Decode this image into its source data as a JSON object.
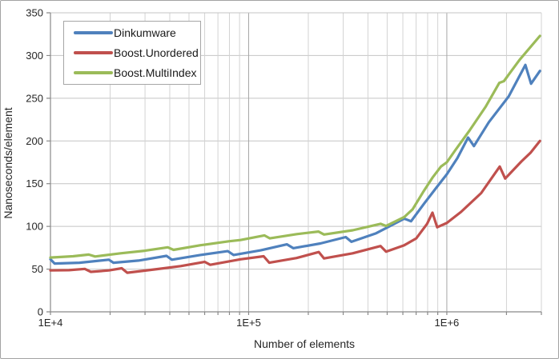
{
  "chart_data": {
    "type": "line",
    "title": "",
    "xlabel": "Number of elements",
    "ylabel": "Nanoseconds/element",
    "x_scale": "log",
    "xlim": [
      10000,
      3000000
    ],
    "ylim": [
      0,
      350
    ],
    "y_ticks": [
      0,
      50,
      100,
      150,
      200,
      250,
      300,
      350
    ],
    "y_gridlines": [
      50,
      100,
      150,
      200,
      250,
      300,
      350
    ],
    "x_ticks": [
      {
        "value": 10000,
        "label": "1E+4"
      },
      {
        "value": 100000,
        "label": "1E+5"
      },
      {
        "value": 1000000,
        "label": "1E+6"
      }
    ],
    "x_gridlines_minor": [
      20000,
      30000,
      40000,
      50000,
      60000,
      70000,
      80000,
      90000,
      200000,
      300000,
      400000,
      500000,
      600000,
      700000,
      800000,
      900000,
      2000000,
      3000000
    ],
    "x_gridlines_major": [
      100000,
      1000000
    ],
    "grid": true,
    "legend_position": "top-left-inside",
    "series": [
      {
        "name": "Dinkumware",
        "color": "#4F81BD",
        "points": [
          [
            10000,
            61.5
          ],
          [
            10500,
            56.5
          ],
          [
            14000,
            57.5
          ],
          [
            19700,
            61
          ],
          [
            20800,
            57.5
          ],
          [
            27800,
            60
          ],
          [
            38500,
            65.5
          ],
          [
            41000,
            61
          ],
          [
            57000,
            66.5
          ],
          [
            78500,
            71
          ],
          [
            84000,
            66.5
          ],
          [
            115000,
            72
          ],
          [
            156000,
            79
          ],
          [
            168000,
            74.5
          ],
          [
            230000,
            80
          ],
          [
            309000,
            87.5
          ],
          [
            330000,
            82
          ],
          [
            440000,
            92
          ],
          [
            610000,
            109
          ],
          [
            660000,
            106
          ],
          [
            770000,
            127
          ],
          [
            890000,
            146
          ],
          [
            1000000,
            161
          ],
          [
            1130000,
            180
          ],
          [
            1280000,
            204
          ],
          [
            1370000,
            194
          ],
          [
            1630000,
            222
          ],
          [
            2050000,
            252
          ],
          [
            2490000,
            289
          ],
          [
            2660000,
            267
          ],
          [
            2950000,
            282
          ]
        ]
      },
      {
        "name": "Boost.Unordered",
        "color": "#C0504D",
        "points": [
          [
            10000,
            48.5
          ],
          [
            12400,
            48.8
          ],
          [
            14900,
            50.3
          ],
          [
            16000,
            46.8
          ],
          [
            19700,
            48.5
          ],
          [
            22900,
            51
          ],
          [
            24400,
            45.8
          ],
          [
            34400,
            50
          ],
          [
            45400,
            53.5
          ],
          [
            60000,
            58.5
          ],
          [
            64000,
            55
          ],
          [
            91000,
            61.5
          ],
          [
            119000,
            65
          ],
          [
            127000,
            57.5
          ],
          [
            174500,
            63
          ],
          [
            226000,
            70
          ],
          [
            240000,
            62.5
          ],
          [
            335000,
            68.5
          ],
          [
            463000,
            77
          ],
          [
            494000,
            70.5
          ],
          [
            610000,
            78
          ],
          [
            701000,
            86
          ],
          [
            795000,
            103
          ],
          [
            846000,
            116
          ],
          [
            894000,
            99
          ],
          [
            1000000,
            104
          ],
          [
            1180000,
            117
          ],
          [
            1490000,
            139
          ],
          [
            1850000,
            170
          ],
          [
            1970000,
            156
          ],
          [
            2380000,
            176
          ],
          [
            2640000,
            186
          ],
          [
            2950000,
            200
          ]
        ]
      },
      {
        "name": "Boost.MultiIndex",
        "color": "#9BBB59",
        "points": [
          [
            10000,
            63.5
          ],
          [
            13000,
            65
          ],
          [
            15600,
            67
          ],
          [
            16800,
            64.8
          ],
          [
            22600,
            68.5
          ],
          [
            29900,
            71.5
          ],
          [
            39100,
            75.5
          ],
          [
            41800,
            72.5
          ],
          [
            57200,
            78
          ],
          [
            79300,
            82.5
          ],
          [
            91000,
            84
          ],
          [
            120000,
            89.5
          ],
          [
            128000,
            86
          ],
          [
            175000,
            91
          ],
          [
            225000,
            94
          ],
          [
            240000,
            90.5
          ],
          [
            335000,
            95.5
          ],
          [
            463000,
            103
          ],
          [
            494000,
            100.5
          ],
          [
            610000,
            111
          ],
          [
            672000,
            120
          ],
          [
            758000,
            140
          ],
          [
            846000,
            157
          ],
          [
            934000,
            170
          ],
          [
            1000000,
            175
          ],
          [
            1110000,
            190
          ],
          [
            1300000,
            212
          ],
          [
            1570000,
            240
          ],
          [
            1840000,
            268
          ],
          [
            1940000,
            270
          ],
          [
            2330000,
            295
          ],
          [
            2950000,
            323
          ]
        ]
      }
    ],
    "colors": {
      "grid_minor": "#d3d3d3",
      "grid_major": "#a6a6a6",
      "grid_horizontal": "#c4c4c4",
      "axis_line": "#898989",
      "tick_text": "#262626",
      "frame_border": "#a3a3a3",
      "legend_border": "#a6a6a6",
      "background": "#ffffff"
    }
  }
}
